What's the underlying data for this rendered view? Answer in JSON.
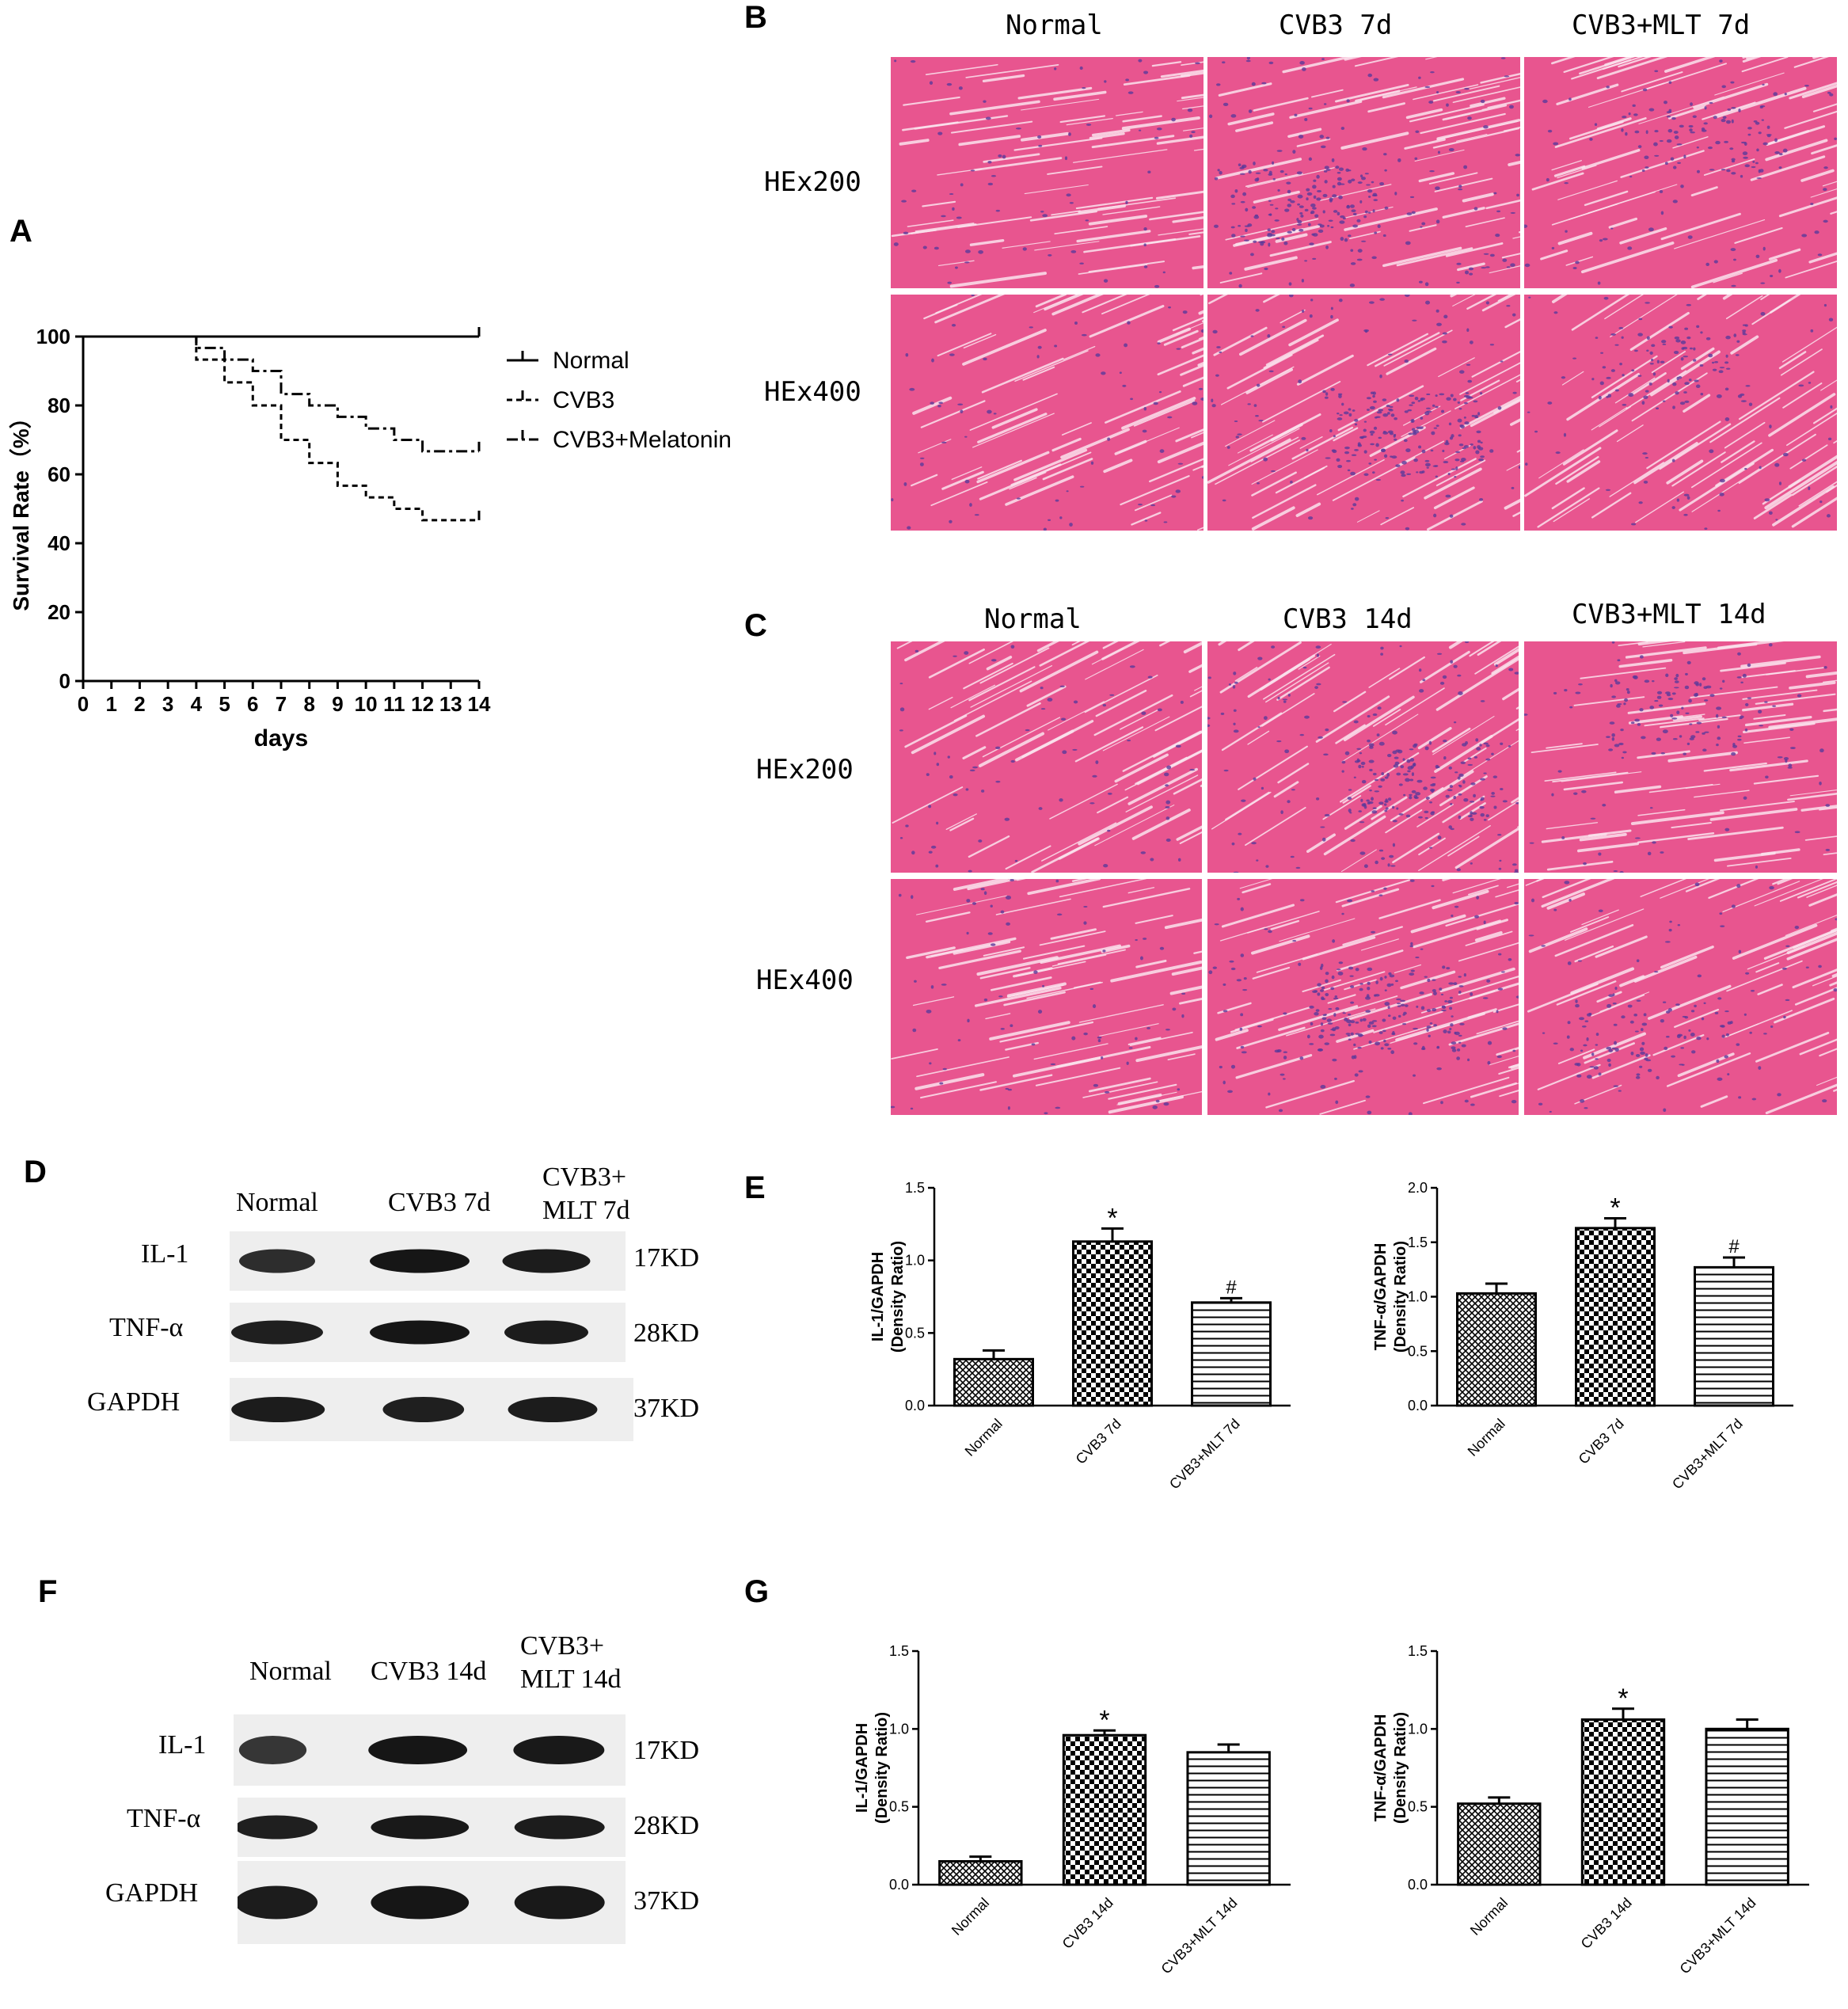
{
  "panels": {
    "a": "A",
    "b": "B",
    "c": "C",
    "d": "D",
    "e": "E",
    "f": "F",
    "g": "G"
  },
  "colors": {
    "tissue_pink": "#e8558f",
    "tissue_light": "#f3a3c3",
    "nuclei": "#5a3a9a",
    "ink": "#000000"
  },
  "histology_b": {
    "columns": [
      "Normal",
      "CVB3  7d",
      "CVB3+MLT  7d"
    ],
    "rows": [
      "HEx200",
      "HEx400"
    ]
  },
  "histology_c": {
    "columns": [
      "Normal",
      "CVB3  14d",
      "CVB3+MLT  14d"
    ],
    "rows": [
      "HEx200",
      "HEx400"
    ]
  },
  "blot_d": {
    "lanes": [
      "Normal",
      "CVB3 7d",
      "CVB3+",
      "MLT 7d"
    ],
    "proteins": [
      "IL-1",
      "TNF-α",
      "GAPDH"
    ],
    "sizes": [
      "17KD",
      "28KD",
      "37KD"
    ]
  },
  "blot_f": {
    "lanes": [
      "Normal",
      "CVB3 14d",
      "CVB3+",
      "MLT 14d"
    ],
    "proteins": [
      "IL-1",
      "TNF-α",
      "GAPDH"
    ],
    "sizes": [
      "17KD",
      "28KD",
      "37KD"
    ]
  },
  "chart_data": [
    {
      "type": "line",
      "id": "survival",
      "xlabel": "days",
      "ylabel": "Survival Rate（%）",
      "xlim": [
        0,
        14
      ],
      "ylim": [
        0,
        100
      ],
      "xticks": [
        0,
        1,
        2,
        3,
        4,
        5,
        6,
        7,
        8,
        9,
        10,
        11,
        12,
        13,
        14
      ],
      "yticks": [
        0,
        20,
        40,
        60,
        80,
        100
      ],
      "legend_position": "right",
      "series": [
        {
          "name": "Normal",
          "style": "solid",
          "x": [
            0,
            14
          ],
          "y": [
            100,
            100
          ]
        },
        {
          "name": "CVB3",
          "style": "dashed",
          "x": [
            0,
            4,
            4,
            5,
            5,
            6,
            6,
            7,
            7,
            8,
            8,
            9,
            9,
            10,
            10,
            11,
            11,
            12,
            12,
            14
          ],
          "y": [
            100,
            100,
            93.3,
            93.3,
            86.7,
            86.7,
            80,
            80,
            70,
            70,
            63.3,
            63.3,
            56.7,
            56.7,
            53.3,
            53.3,
            50,
            50,
            46.7,
            46.7
          ]
        },
        {
          "name": "CVB3+Melatonin",
          "style": "dashdot",
          "x": [
            0,
            4,
            4,
            5,
            5,
            6,
            6,
            7,
            7,
            8,
            8,
            9,
            9,
            10,
            10,
            11,
            11,
            12,
            12,
            14
          ],
          "y": [
            100,
            100,
            96.7,
            96.7,
            93.3,
            93.3,
            90,
            90,
            83.3,
            83.3,
            80,
            80,
            76.7,
            76.7,
            73.3,
            73.3,
            70,
            70,
            66.7,
            66.7
          ]
        }
      ]
    },
    {
      "type": "bar",
      "id": "e_il1",
      "ylabel": "IL-1/GAPDH",
      "ylabel2": "(Density Ratio)",
      "categories": [
        "Normal",
        "CVB3 7d",
        "CVB3+MLT 7d"
      ],
      "values": [
        0.32,
        1.13,
        0.71
      ],
      "errors": [
        0.06,
        0.09,
        0.03
      ],
      "markers": [
        "",
        "*",
        "#"
      ],
      "patterns": [
        "crosshatch",
        "checker",
        "hlines"
      ],
      "ylim": [
        0,
        1.5
      ],
      "yticks": [
        "0.0",
        "0.5",
        "1.0",
        "1.5"
      ]
    },
    {
      "type": "bar",
      "id": "e_tnf",
      "ylabel": "TNF-α/GAPDH",
      "ylabel2": "(Density Ratio)",
      "categories": [
        "Normal",
        "CVB3 7d",
        "CVB3+MLT 7d"
      ],
      "values": [
        1.03,
        1.63,
        1.27
      ],
      "errors": [
        0.09,
        0.09,
        0.09
      ],
      "markers": [
        "",
        "*",
        "#"
      ],
      "patterns": [
        "crosshatch",
        "checker",
        "hlines"
      ],
      "ylim": [
        0,
        2.0
      ],
      "yticks": [
        "0.0",
        "0.5",
        "1.0",
        "1.5",
        "2.0"
      ]
    },
    {
      "type": "bar",
      "id": "g_il1",
      "ylabel": "IL-1/GAPDH",
      "ylabel2": "(Density Ratio)",
      "categories": [
        "Normal",
        "CVB3 14d",
        "CVB3+MLT 14d"
      ],
      "values": [
        0.15,
        0.96,
        0.85
      ],
      "errors": [
        0.03,
        0.03,
        0.05
      ],
      "markers": [
        "",
        "*",
        ""
      ],
      "patterns": [
        "crosshatch",
        "checker",
        "hlines"
      ],
      "ylim": [
        0,
        1.5
      ],
      "yticks": [
        "0.0",
        "0.5",
        "1.0",
        "1.5"
      ]
    },
    {
      "type": "bar",
      "id": "g_tnf",
      "ylabel": "TNF-α/GAPDH",
      "ylabel2": "(Density Ratio)",
      "categories": [
        "Normal",
        "CVB3 14d",
        "CVB3+MLT 14d"
      ],
      "values": [
        0.52,
        1.06,
        1.0
      ],
      "errors": [
        0.04,
        0.07,
        0.06
      ],
      "markers": [
        "",
        "*",
        ""
      ],
      "patterns": [
        "crosshatch",
        "checker",
        "hlines"
      ],
      "ylim": [
        0,
        1.5
      ],
      "yticks": [
        "0.0",
        "0.5",
        "1.0",
        "1.5"
      ]
    }
  ]
}
